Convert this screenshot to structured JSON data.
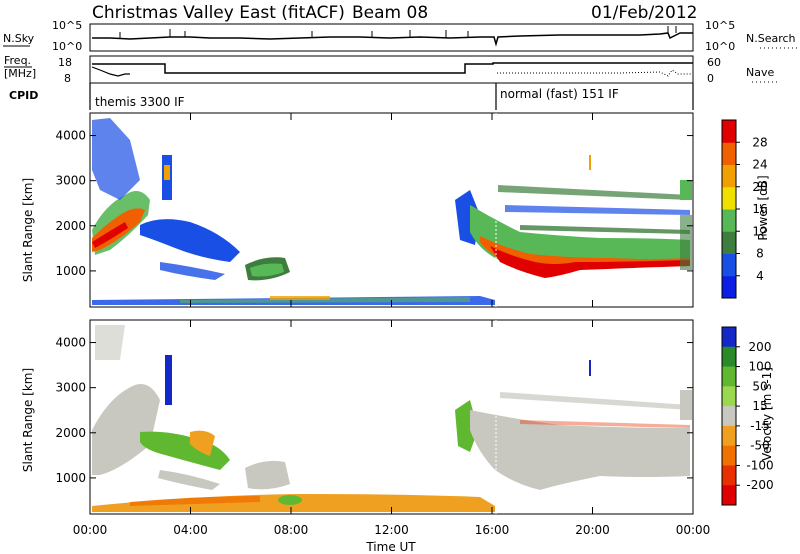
{
  "header": {
    "title": "Christmas Valley East (fitACF)",
    "beam": "Beam 08",
    "date": "01/Feb/2012"
  },
  "side_labels": {
    "nsky": "N.Sky",
    "freq_top": "Freq.",
    "freq_unit": "[MHz]",
    "cpid": "CPID",
    "nsearch": "N.Search",
    "nave": "Nave"
  },
  "mini_axes": {
    "nsky_ticks": [
      "10^5",
      "10^0"
    ],
    "nsearch_ticks": [
      "10^5",
      "10^0"
    ],
    "freq_ticks": [
      "18",
      "8"
    ],
    "nave_ticks": [
      "60",
      "0"
    ]
  },
  "cpid_labels": [
    "themis 3300 IF",
    "normal (fast) 151 IF"
  ],
  "chart_data": [
    {
      "type": "heatmap",
      "name": "power",
      "ylabel": "Slant Range [km]",
      "xlabel": "Time UT",
      "x_ticks": [
        "00:00",
        "04:00",
        "08:00",
        "12:00",
        "16:00",
        "20:00",
        "00:00"
      ],
      "y_ticks": [
        "1000",
        "2000",
        "3000",
        "4000"
      ],
      "colorbar": {
        "label": "Power [dB]",
        "ticks": [
          "4",
          "8",
          "12",
          "16",
          "20",
          "24",
          "28"
        ],
        "colors": [
          "#0a1ee6",
          "#1a4fe6",
          "#3d7d3d",
          "#58b858",
          "#f0e000",
          "#f0a000",
          "#f06000",
          "#e00000"
        ]
      }
    },
    {
      "type": "heatmap",
      "name": "velocity",
      "ylabel": "Slant Range [km]",
      "xlabel": "Time UT",
      "x_ticks": [
        "00:00",
        "04:00",
        "08:00",
        "12:00",
        "16:00",
        "20:00",
        "00:00"
      ],
      "y_ticks": [
        "1000",
        "2000",
        "3000",
        "4000"
      ],
      "colorbar": {
        "label": "Velocity [m s-1]",
        "ticks": [
          "200",
          "100",
          "50",
          "15",
          "-15",
          "-50",
          "-100",
          "-200"
        ],
        "colors": [
          "#1428c8",
          "#2a8a2a",
          "#60b830",
          "#9ad850",
          "#c8c8c0",
          "#f0a020",
          "#f07000",
          "#e83000",
          "#e00000"
        ]
      }
    }
  ],
  "footer": {
    "xlabel": "Time UT"
  }
}
